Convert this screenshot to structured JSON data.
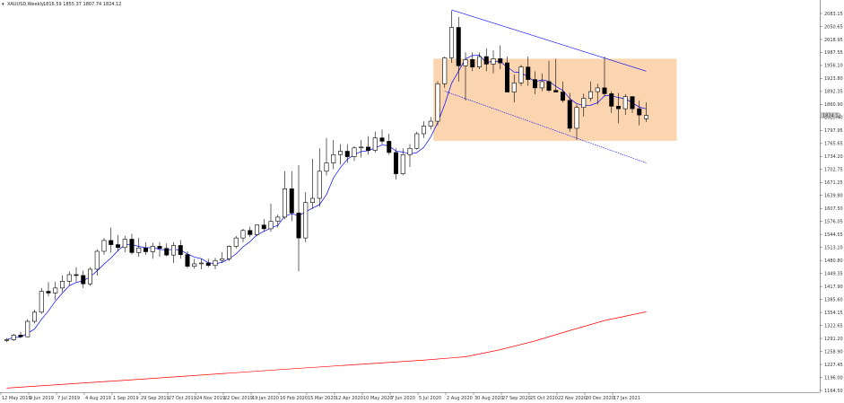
{
  "header": {
    "symbol": "XAUUSD,Weekly",
    "ohlc": "1816.59 1855.37 1807.74 1824.12"
  },
  "chart_data": {
    "type": "candlestick",
    "title": "XAUUSD,Weekly",
    "y_range": [
      1170,
      2080
    ],
    "y_ticks": [
      "2083.15",
      "2050.65",
      "2018.95",
      "1987.55",
      "1956.10",
      "1923.80",
      "1892.35",
      "1860.90",
      "1829.40",
      "1797.95",
      "1765.65",
      "1734.20",
      "1702.75",
      "1671.25",
      "1639.80",
      "1607.50",
      "1576.05",
      "1544.55",
      "1513.10",
      "1480.80",
      "1449.35",
      "1417.90",
      "1385.60",
      "1354.15",
      "1322.65",
      "1291.20",
      "1258.90",
      "1227.45",
      "1196.00",
      "1164.50"
    ],
    "current_price": "1824.12",
    "x_labels": [
      "12 May 2019",
      "9 Jun 2019",
      "7 Jul 2019",
      "4 Aug 2019",
      "1 Sep 2019",
      "29 Sep 2019",
      "27 Oct 2019",
      "24 Nov 2019",
      "22 Dec 2019",
      "19 Jan 2020",
      "16 Feb 2020",
      "15 Mar 2020",
      "12 Apr 2020",
      "10 May 2020",
      "7 Jun 2020",
      "5 Jul 2020",
      "2 Aug 2020",
      "30 Aug 2020",
      "27 Sep 2020",
      "25 Oct 2020",
      "22 Nov 2020",
      "20 Dec 2020",
      "17 Jan 2021"
    ],
    "candles": [
      [
        1284,
        1290,
        1280,
        1286
      ],
      [
        1286,
        1300,
        1283,
        1297
      ],
      [
        1297,
        1305,
        1290,
        1293
      ],
      [
        1293,
        1335,
        1292,
        1330
      ],
      [
        1330,
        1358,
        1325,
        1352
      ],
      [
        1352,
        1410,
        1348,
        1402
      ],
      [
        1402,
        1424,
        1390,
        1398
      ],
      [
        1398,
        1425,
        1382,
        1410
      ],
      [
        1410,
        1440,
        1400,
        1426
      ],
      [
        1426,
        1450,
        1415,
        1442
      ],
      [
        1442,
        1460,
        1425,
        1440
      ],
      [
        1440,
        1452,
        1410,
        1420
      ],
      [
        1420,
        1460,
        1415,
        1455
      ],
      [
        1455,
        1503,
        1440,
        1498
      ],
      [
        1498,
        1530,
        1490,
        1524
      ],
      [
        1524,
        1555,
        1495,
        1514
      ],
      [
        1514,
        1537,
        1498,
        1507
      ],
      [
        1507,
        1535,
        1496,
        1527
      ],
      [
        1527,
        1540,
        1490,
        1495
      ],
      [
        1495,
        1530,
        1485,
        1506
      ],
      [
        1506,
        1520,
        1490,
        1497
      ],
      [
        1497,
        1518,
        1480,
        1510
      ],
      [
        1510,
        1520,
        1485,
        1505
      ],
      [
        1505,
        1517,
        1486,
        1489
      ],
      [
        1489,
        1520,
        1470,
        1512
      ],
      [
        1512,
        1525,
        1480,
        1490
      ],
      [
        1490,
        1498,
        1458,
        1462
      ],
      [
        1462,
        1480,
        1456,
        1468
      ],
      [
        1468,
        1480,
        1455,
        1470
      ],
      [
        1470,
        1480,
        1460,
        1464
      ],
      [
        1464,
        1482,
        1455,
        1476
      ],
      [
        1476,
        1496,
        1470,
        1480
      ],
      [
        1480,
        1512,
        1475,
        1510
      ],
      [
        1510,
        1535,
        1505,
        1530
      ],
      [
        1530,
        1552,
        1520,
        1548
      ],
      [
        1548,
        1557,
        1532,
        1538
      ],
      [
        1538,
        1562,
        1535,
        1561
      ],
      [
        1561,
        1575,
        1545,
        1552
      ],
      [
        1552,
        1612,
        1545,
        1570
      ],
      [
        1570,
        1586,
        1555,
        1580
      ],
      [
        1580,
        1690,
        1575,
        1648
      ],
      [
        1648,
        1690,
        1570,
        1590
      ],
      [
        1590,
        1705,
        1450,
        1530
      ],
      [
        1530,
        1640,
        1520,
        1615
      ],
      [
        1615,
        1720,
        1600,
        1625
      ],
      [
        1625,
        1745,
        1605,
        1690
      ],
      [
        1690,
        1770,
        1680,
        1710
      ],
      [
        1710,
        1765,
        1695,
        1730
      ],
      [
        1730,
        1755,
        1706,
        1738
      ],
      [
        1738,
        1755,
        1710,
        1725
      ],
      [
        1725,
        1750,
        1715,
        1746
      ],
      [
        1746,
        1765,
        1723,
        1748
      ],
      [
        1748,
        1774,
        1730,
        1740
      ],
      [
        1740,
        1785,
        1735,
        1770
      ],
      [
        1770,
        1790,
        1755,
        1762
      ],
      [
        1762,
        1780,
        1730,
        1735
      ],
      [
        1735,
        1745,
        1670,
        1684
      ],
      [
        1684,
        1745,
        1680,
        1730
      ],
      [
        1730,
        1755,
        1700,
        1745
      ],
      [
        1745,
        1785,
        1742,
        1780
      ],
      [
        1780,
        1810,
        1770,
        1798
      ],
      [
        1798,
        1820,
        1790,
        1810
      ],
      [
        1810,
        1906,
        1800,
        1900
      ],
      [
        1900,
        1965,
        1890,
        1962
      ],
      [
        1962,
        2075,
        1950,
        2035
      ],
      [
        2035,
        2060,
        1905,
        1943
      ],
      [
        1943,
        1975,
        1860,
        1958
      ],
      [
        1958,
        1975,
        1930,
        1940
      ],
      [
        1940,
        1975,
        1935,
        1965
      ],
      [
        1965,
        1985,
        1930,
        1947
      ],
      [
        1947,
        1980,
        1925,
        1960
      ],
      [
        1960,
        1992,
        1935,
        1950
      ],
      [
        1950,
        1965,
        1880,
        1880
      ],
      [
        1880,
        1922,
        1855,
        1902
      ],
      [
        1902,
        1945,
        1895,
        1940
      ],
      [
        1940,
        1965,
        1895,
        1910
      ],
      [
        1910,
        1930,
        1875,
        1890
      ],
      [
        1890,
        1925,
        1882,
        1905
      ],
      [
        1905,
        1955,
        1880,
        1884
      ],
      [
        1884,
        1960,
        1880,
        1880
      ],
      [
        1880,
        1905,
        1855,
        1860
      ],
      [
        1860,
        1878,
        1785,
        1793
      ],
      [
        1793,
        1850,
        1765,
        1843
      ],
      [
        1843,
        1876,
        1821,
        1865
      ],
      [
        1865,
        1905,
        1858,
        1881
      ],
      [
        1881,
        1900,
        1850,
        1890
      ],
      [
        1890,
        1965,
        1870,
        1876
      ],
      [
        1876,
        1882,
        1830,
        1846
      ],
      [
        1846,
        1878,
        1805,
        1840
      ],
      [
        1840,
        1875,
        1825,
        1869
      ],
      [
        1869,
        1870,
        1830,
        1840
      ],
      [
        1840,
        1860,
        1800,
        1825
      ],
      [
        1816,
        1855,
        1808,
        1824
      ]
    ],
    "ma_color": "#0000ff",
    "long_ma_color": "#ff0000",
    "long_ma": [
      [
        0,
        1170
      ],
      [
        20,
        1192
      ],
      [
        40,
        1215
      ],
      [
        60,
        1237
      ],
      [
        66,
        1245
      ],
      [
        71,
        1262
      ],
      [
        76,
        1283
      ],
      [
        81,
        1308
      ],
      [
        86,
        1332
      ],
      [
        92,
        1353
      ]
    ],
    "channel_color": "#0000ff",
    "box_color": "#fbd5b0"
  }
}
